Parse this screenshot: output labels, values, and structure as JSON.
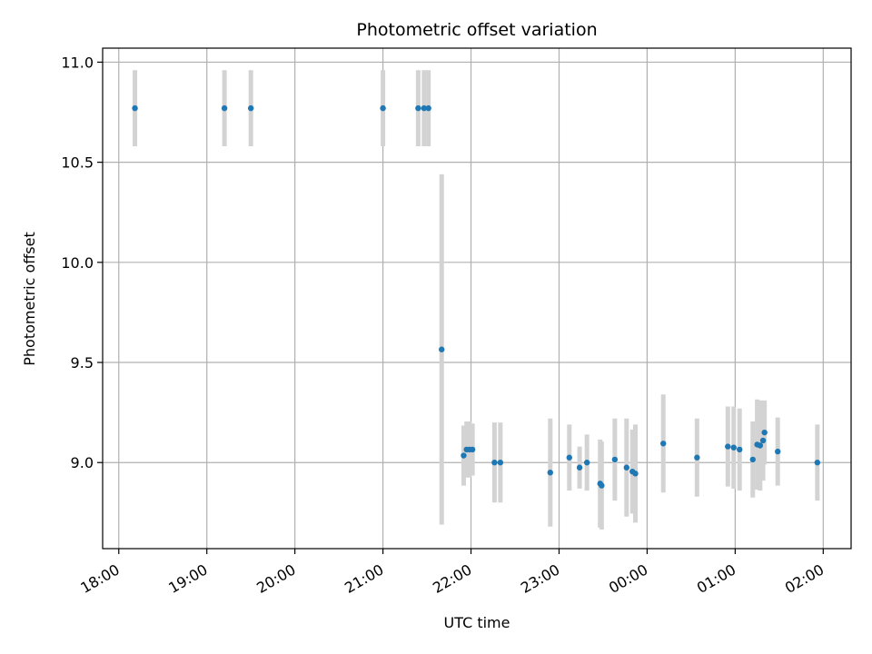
{
  "chart_data": {
    "type": "scatter",
    "title": "Photometric offset variation",
    "xlabel": "UTC time",
    "ylabel": "Photometric offset",
    "x_ticks": [
      "18:00",
      "19:00",
      "20:00",
      "21:00",
      "22:00",
      "23:00",
      "00:00",
      "01:00",
      "02:00"
    ],
    "y_ticks": [
      "9.0",
      "9.5",
      "10.0",
      "10.5",
      "11.0"
    ],
    "y_tick_values": [
      9.0,
      9.5,
      10.0,
      10.5,
      11.0
    ],
    "xlim": [
      "17:49",
      "02:19"
    ],
    "ylim": [
      8.57,
      11.07
    ],
    "grid": true,
    "marker_color": "#1f77b4",
    "errorbar_color": "#d3d3d3",
    "points": [
      {
        "t": "18:11",
        "y": 10.77,
        "err": 0.19
      },
      {
        "t": "19:12",
        "y": 10.77,
        "err": 0.19
      },
      {
        "t": "19:30",
        "y": 10.77,
        "err": 0.19
      },
      {
        "t": "21:00",
        "y": 10.77,
        "err": 0.19
      },
      {
        "t": "21:24",
        "y": 10.77,
        "err": 0.19
      },
      {
        "t": "21:28",
        "y": 10.77,
        "err": 0.19
      },
      {
        "t": "21:31",
        "y": 10.77,
        "err": 0.19
      },
      {
        "t": "21:40",
        "y": 9.565,
        "err": 0.875
      },
      {
        "t": "21:55",
        "y": 9.035,
        "err": 0.15
      },
      {
        "t": "21:57",
        "y": 9.065,
        "err": 0.14
      },
      {
        "t": "21:59",
        "y": 9.065,
        "err": 0.14
      },
      {
        "t": "22:01",
        "y": 9.065,
        "err": 0.13
      },
      {
        "t": "22:16",
        "y": 9.0,
        "err": 0.2
      },
      {
        "t": "22:20",
        "y": 9.0,
        "err": 0.2
      },
      {
        "t": "22:54",
        "y": 8.95,
        "err": 0.27
      },
      {
        "t": "23:07",
        "y": 9.025,
        "err": 0.165
      },
      {
        "t": "23:14",
        "y": 8.975,
        "err": 0.105
      },
      {
        "t": "23:19",
        "y": 9.0,
        "err": 0.14
      },
      {
        "t": "23:28",
        "y": 8.895,
        "err": 0.22
      },
      {
        "t": "23:29",
        "y": 8.885,
        "err": 0.22
      },
      {
        "t": "23:38",
        "y": 9.015,
        "err": 0.205
      },
      {
        "t": "23:46",
        "y": 8.975,
        "err": 0.245
      },
      {
        "t": "23:50",
        "y": 8.955,
        "err": 0.21
      },
      {
        "t": "23:52",
        "y": 8.945,
        "err": 0.245
      },
      {
        "t": "00:11",
        "y": 9.095,
        "err": 0.245
      },
      {
        "t": "00:34",
        "y": 9.025,
        "err": 0.195
      },
      {
        "t": "00:55",
        "y": 9.08,
        "err": 0.2
      },
      {
        "t": "00:59",
        "y": 9.075,
        "err": 0.205
      },
      {
        "t": "01:03",
        "y": 9.065,
        "err": 0.205
      },
      {
        "t": "01:12",
        "y": 9.015,
        "err": 0.19
      },
      {
        "t": "01:15",
        "y": 9.09,
        "err": 0.225
      },
      {
        "t": "01:17",
        "y": 9.085,
        "err": 0.225
      },
      {
        "t": "01:19",
        "y": 9.11,
        "err": 0.2
      },
      {
        "t": "01:20",
        "y": 9.15,
        "err": 0.16
      },
      {
        "t": "01:29",
        "y": 9.055,
        "err": 0.17
      },
      {
        "t": "01:56",
        "y": 9.0,
        "err": 0.19
      }
    ]
  }
}
